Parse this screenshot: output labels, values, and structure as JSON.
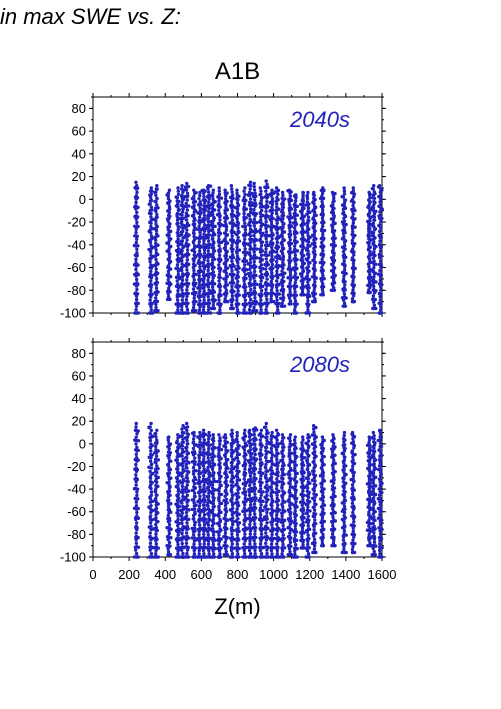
{
  "figure_title": "in max SWE vs. Z:",
  "scenario_label": "A1B",
  "chart_data": [
    {
      "type": "scatter",
      "title": "",
      "annotation": "2040s",
      "xlabel": "",
      "ylabel": "",
      "xlim": [
        0,
        1600
      ],
      "ylim": [
        -100,
        90
      ],
      "x_ticks": [],
      "y_ticks": [
        "80",
        "60",
        "40",
        "20",
        "0",
        "-20",
        "-40",
        "-60",
        "-80",
        "-100"
      ],
      "grid": false,
      "marker_color": "#2222bb",
      "columns": [
        {
          "x": 240,
          "ymin": -100,
          "ymax": 15
        },
        {
          "x": 320,
          "ymin": -100,
          "ymax": 10
        },
        {
          "x": 350,
          "ymin": -98,
          "ymax": 12
        },
        {
          "x": 420,
          "ymin": -88,
          "ymax": 8
        },
        {
          "x": 470,
          "ymin": -100,
          "ymax": 10
        },
        {
          "x": 495,
          "ymin": -100,
          "ymax": 12
        },
        {
          "x": 520,
          "ymin": -100,
          "ymax": 14
        },
        {
          "x": 560,
          "ymin": -98,
          "ymax": 8
        },
        {
          "x": 590,
          "ymin": -100,
          "ymax": 6
        },
        {
          "x": 615,
          "ymin": -100,
          "ymax": 8
        },
        {
          "x": 640,
          "ymin": -100,
          "ymax": 12
        },
        {
          "x": 665,
          "ymin": -96,
          "ymax": 8
        },
        {
          "x": 700,
          "ymin": -100,
          "ymax": 10
        },
        {
          "x": 735,
          "ymin": -90,
          "ymax": 8
        },
        {
          "x": 770,
          "ymin": -96,
          "ymax": 12
        },
        {
          "x": 800,
          "ymin": -100,
          "ymax": 8
        },
        {
          "x": 840,
          "ymin": -100,
          "ymax": 10
        },
        {
          "x": 870,
          "ymin": -100,
          "ymax": 15
        },
        {
          "x": 895,
          "ymin": -98,
          "ymax": 14
        },
        {
          "x": 930,
          "ymin": -100,
          "ymax": 10
        },
        {
          "x": 960,
          "ymin": -100,
          "ymax": 16
        },
        {
          "x": 990,
          "ymin": -90,
          "ymax": 8
        },
        {
          "x": 1020,
          "ymin": -100,
          "ymax": 10
        },
        {
          "x": 1050,
          "ymin": -94,
          "ymax": 6
        },
        {
          "x": 1090,
          "ymin": -92,
          "ymax": 8
        },
        {
          "x": 1120,
          "ymin": -100,
          "ymax": 4
        },
        {
          "x": 1160,
          "ymin": -84,
          "ymax": 6
        },
        {
          "x": 1190,
          "ymin": -100,
          "ymax": 6
        },
        {
          "x": 1225,
          "ymin": -90,
          "ymax": 6
        },
        {
          "x": 1270,
          "ymin": -84,
          "ymax": 10
        },
        {
          "x": 1330,
          "ymin": -80,
          "ymax": 6
        },
        {
          "x": 1390,
          "ymin": -94,
          "ymax": 10
        },
        {
          "x": 1440,
          "ymin": -90,
          "ymax": 10
        },
        {
          "x": 1530,
          "ymin": -82,
          "ymax": 6
        },
        {
          "x": 1555,
          "ymin": -96,
          "ymax": 12
        },
        {
          "x": 1590,
          "ymin": -100,
          "ymax": 12
        }
      ]
    },
    {
      "type": "scatter",
      "title": "",
      "annotation": "2080s",
      "xlabel": "Z(m)",
      "ylabel": "",
      "xlim": [
        0,
        1600
      ],
      "ylim": [
        -100,
        90
      ],
      "x_ticks": [
        "0",
        "200",
        "400",
        "600",
        "800",
        "1000",
        "1200",
        "1400",
        "1600"
      ],
      "y_ticks": [
        "80",
        "60",
        "40",
        "20",
        "0",
        "-20",
        "-40",
        "-60",
        "-80",
        "-100"
      ],
      "grid": false,
      "marker_color": "#2222bb",
      "columns": [
        {
          "x": 240,
          "ymin": -100,
          "ymax": 18
        },
        {
          "x": 320,
          "ymin": -100,
          "ymax": 18
        },
        {
          "x": 350,
          "ymin": -100,
          "ymax": 12
        },
        {
          "x": 420,
          "ymin": -98,
          "ymax": 6
        },
        {
          "x": 470,
          "ymin": -100,
          "ymax": 8
        },
        {
          "x": 495,
          "ymin": -100,
          "ymax": 16
        },
        {
          "x": 520,
          "ymin": -100,
          "ymax": 18
        },
        {
          "x": 560,
          "ymin": -100,
          "ymax": 10
        },
        {
          "x": 590,
          "ymin": -100,
          "ymax": 10
        },
        {
          "x": 615,
          "ymin": -100,
          "ymax": 12
        },
        {
          "x": 640,
          "ymin": -100,
          "ymax": 10
        },
        {
          "x": 665,
          "ymin": -100,
          "ymax": 8
        },
        {
          "x": 700,
          "ymin": -100,
          "ymax": 8
        },
        {
          "x": 735,
          "ymin": -98,
          "ymax": 8
        },
        {
          "x": 770,
          "ymin": -100,
          "ymax": 12
        },
        {
          "x": 800,
          "ymin": -100,
          "ymax": 10
        },
        {
          "x": 840,
          "ymin": -100,
          "ymax": 12
        },
        {
          "x": 870,
          "ymin": -100,
          "ymax": 12
        },
        {
          "x": 895,
          "ymin": -100,
          "ymax": 14
        },
        {
          "x": 930,
          "ymin": -100,
          "ymax": 12
        },
        {
          "x": 960,
          "ymin": -100,
          "ymax": 18
        },
        {
          "x": 990,
          "ymin": -100,
          "ymax": 10
        },
        {
          "x": 1020,
          "ymin": -100,
          "ymax": 12
        },
        {
          "x": 1050,
          "ymin": -100,
          "ymax": 8
        },
        {
          "x": 1090,
          "ymin": -98,
          "ymax": 8
        },
        {
          "x": 1120,
          "ymin": -100,
          "ymax": 6
        },
        {
          "x": 1160,
          "ymin": -92,
          "ymax": 6
        },
        {
          "x": 1190,
          "ymin": -100,
          "ymax": 8
        },
        {
          "x": 1225,
          "ymin": -96,
          "ymax": 16
        },
        {
          "x": 1270,
          "ymin": -90,
          "ymax": 6
        },
        {
          "x": 1330,
          "ymin": -90,
          "ymax": 8
        },
        {
          "x": 1390,
          "ymin": -96,
          "ymax": 10
        },
        {
          "x": 1440,
          "ymin": -96,
          "ymax": 10
        },
        {
          "x": 1530,
          "ymin": -90,
          "ymax": 6
        },
        {
          "x": 1555,
          "ymin": -98,
          "ymax": 10
        },
        {
          "x": 1590,
          "ymin": -100,
          "ymax": 12
        }
      ]
    }
  ]
}
